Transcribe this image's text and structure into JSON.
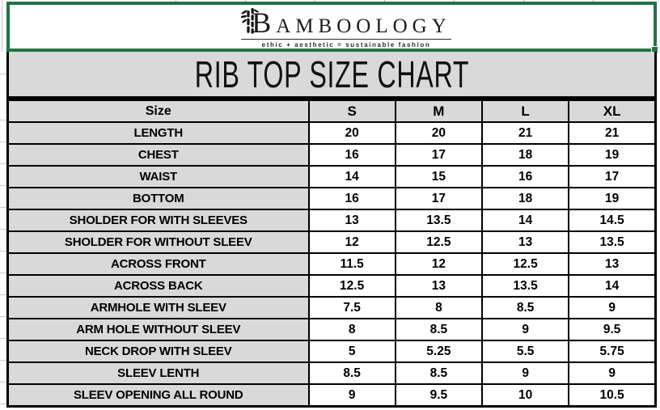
{
  "brand": {
    "wordmark_initial": "B",
    "wordmark_rest": "AMBOOLOGY",
    "tagline": "ethic + aesthetic = sustainable fashion"
  },
  "title": "RIB TOP SIZE CHART",
  "size_chart": {
    "columns": [
      "Size",
      "S",
      "M",
      "L",
      "XL"
    ],
    "rows": [
      {
        "label": "LENGTH",
        "values": [
          "20",
          "20",
          "21",
          "21"
        ]
      },
      {
        "label": "CHEST",
        "values": [
          "16",
          "17",
          "18",
          "19"
        ]
      },
      {
        "label": "WAIST",
        "values": [
          "14",
          "15",
          "16",
          "17"
        ]
      },
      {
        "label": "BOTTOM",
        "values": [
          "16",
          "17",
          "18",
          "19"
        ]
      },
      {
        "label": "SHOLDER FOR WITH SLEEVES",
        "values": [
          "13",
          "13.5",
          "14",
          "14.5"
        ]
      },
      {
        "label": "SHOLDER FOR WITHOUT SLEEV",
        "values": [
          "12",
          "12.5",
          "13",
          "13.5"
        ]
      },
      {
        "label": "ACROSS FRONT",
        "values": [
          "11.5",
          "12",
          "12.5",
          "13"
        ]
      },
      {
        "label": "ACROSS BACK",
        "values": [
          "12.5",
          "13",
          "13.5",
          "14"
        ]
      },
      {
        "label": "ARMHOLE WITH SLEEV",
        "values": [
          "7.5",
          "8",
          "8.5",
          "9"
        ]
      },
      {
        "label": "ARM HOLE WITHOUT SLEEV",
        "values": [
          "8",
          "8.5",
          "9",
          "9.5"
        ]
      },
      {
        "label": "NECK DROP WITH SLEEV",
        "values": [
          "5",
          "5.25",
          "5.5",
          "5.75"
        ]
      },
      {
        "label": "SLEEV LENTH",
        "values": [
          "8.5",
          "8.5",
          "9",
          "9"
        ]
      },
      {
        "label": "SLEEV OPENING ALL ROUND",
        "values": [
          "9",
          "9.5",
          "10",
          "10.5"
        ]
      }
    ]
  },
  "colors": {
    "selection_green": "#217346",
    "header_gray": "#d9d9d9",
    "border_black": "#000000"
  }
}
